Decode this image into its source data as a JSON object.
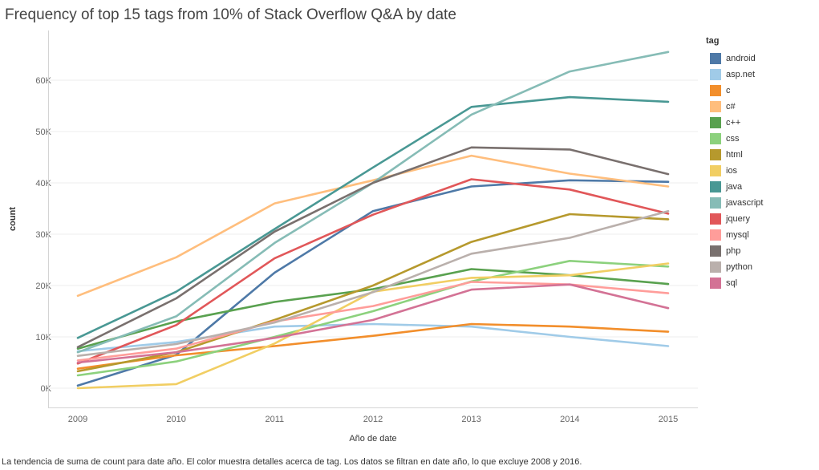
{
  "title": "Frequency of top 15 tags from 10% of Stack Overflow Q&A by date",
  "footer": "La tendencia de suma de count para date año.  El color muestra detalles acerca de tag. Los datos se filtran en date año, lo que excluye 2008 y 2016.",
  "legend_title": "tag",
  "chart_data": {
    "type": "line",
    "title": "Frequency of top 15 tags from 10% of Stack Overflow Q&A by date",
    "xlabel": "Año de date",
    "ylabel": "count",
    "x": [
      "2009",
      "2010",
      "2011",
      "2012",
      "2013",
      "2014",
      "2015"
    ],
    "ylim": [
      0,
      68000
    ],
    "yticks": [
      0,
      10000,
      20000,
      30000,
      40000,
      50000,
      60000
    ],
    "ytick_labels": [
      "0K",
      "10K",
      "20K",
      "30K",
      "40K",
      "50K",
      "60K"
    ],
    "grid": "horizontal",
    "legend_position": "right",
    "series": [
      {
        "name": "android",
        "color": "#4e79a7",
        "values": [
          500,
          6500,
          22500,
          34500,
          39300,
          40500,
          40200
        ]
      },
      {
        "name": "asp.net",
        "color": "#a0cbe8",
        "values": [
          7200,
          9000,
          12000,
          12500,
          12000,
          10000,
          8200
        ]
      },
      {
        "name": "c",
        "color": "#f28e2b",
        "values": [
          3800,
          6400,
          8200,
          10200,
          12500,
          12000,
          11000
        ]
      },
      {
        "name": "c#",
        "color": "#ffbe7d",
        "values": [
          18000,
          25500,
          36000,
          40500,
          45300,
          41800,
          39300
        ]
      },
      {
        "name": "c++",
        "color": "#59a14f",
        "values": [
          7700,
          13000,
          16800,
          19300,
          23200,
          22000,
          20300
        ]
      },
      {
        "name": "css",
        "color": "#8cd17d",
        "values": [
          2500,
          5200,
          10000,
          15000,
          20800,
          24800,
          23700
        ]
      },
      {
        "name": "html",
        "color": "#b6992d",
        "values": [
          3300,
          7000,
          13300,
          20000,
          28500,
          33900,
          32900
        ]
      },
      {
        "name": "ios",
        "color": "#f1ce63",
        "values": [
          0,
          800,
          8700,
          18800,
          21500,
          22000,
          24300
        ]
      },
      {
        "name": "java",
        "color": "#499894",
        "values": [
          9800,
          18800,
          31000,
          43000,
          54800,
          56700,
          55800
        ]
      },
      {
        "name": "javascript",
        "color": "#86bcb6",
        "values": [
          7000,
          14000,
          28300,
          40000,
          53300,
          61700,
          65500
        ]
      },
      {
        "name": "jquery",
        "color": "#e15759",
        "values": [
          4800,
          12300,
          25300,
          33800,
          40700,
          38700,
          34000
        ]
      },
      {
        "name": "mysql",
        "color": "#ff9d9a",
        "values": [
          5400,
          7700,
          13000,
          16000,
          20700,
          20200,
          18500
        ]
      },
      {
        "name": "php",
        "color": "#79706e",
        "values": [
          8000,
          17500,
          30500,
          40000,
          46900,
          46500,
          41700
        ]
      },
      {
        "name": "python",
        "color": "#bab0ac",
        "values": [
          6300,
          8600,
          12800,
          18700,
          26200,
          29300,
          34500
        ]
      },
      {
        "name": "sql",
        "color": "#d37295",
        "values": [
          5000,
          7000,
          9800,
          13300,
          19200,
          20200,
          15600
        ]
      }
    ]
  }
}
